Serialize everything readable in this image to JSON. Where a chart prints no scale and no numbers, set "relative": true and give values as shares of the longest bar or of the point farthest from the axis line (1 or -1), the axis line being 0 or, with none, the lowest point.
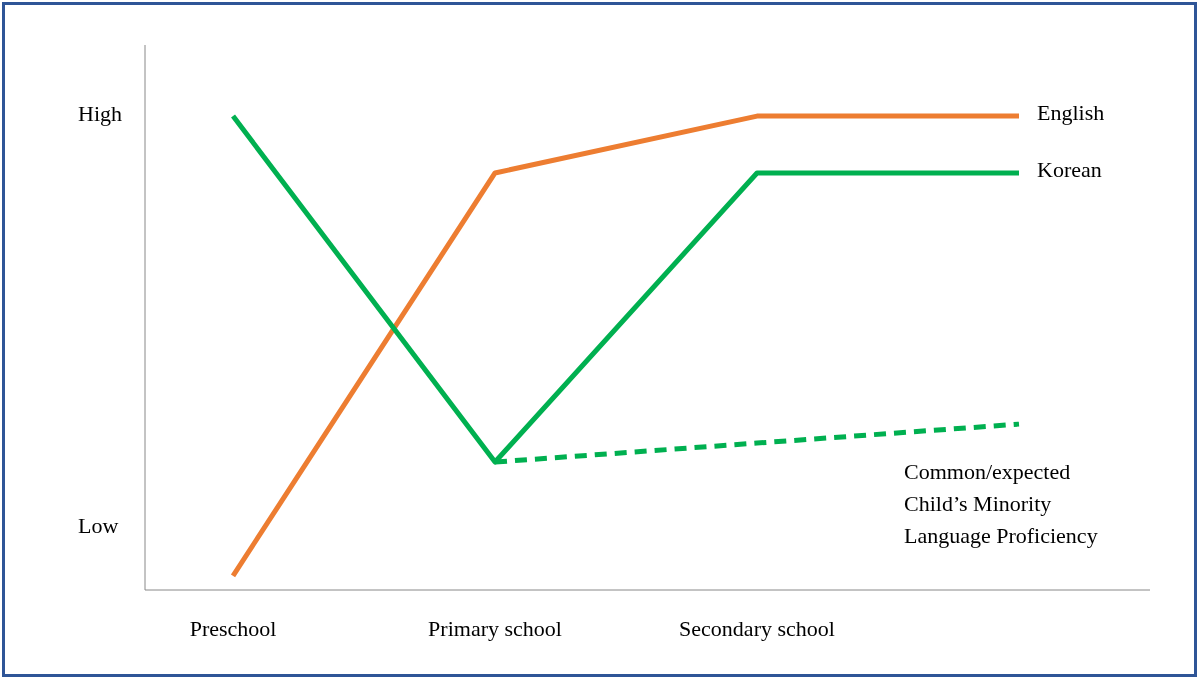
{
  "chart_data": {
    "type": "line",
    "relative": true,
    "categories": [
      "Preschool",
      "Primary school",
      "Secondary school",
      null
    ],
    "annotations": [
      "High",
      "Low"
    ],
    "marker": "none",
    "series": [
      {
        "name": "English",
        "color": "#ed7d31",
        "values": [
          0.03,
          0.88,
          1,
          1
        ]
      },
      {
        "name": "Korean",
        "color": "#00b050",
        "values": [
          1,
          0.27,
          0.88,
          0.88
        ]
      },
      {
        "name": "Common/expected Child’s Minority Language Proficiency",
        "color": "#00b050",
        "line_style": "dashed",
        "values": [
          null,
          0.27,
          0.31,
          0.35
        ]
      }
    ]
  }
}
